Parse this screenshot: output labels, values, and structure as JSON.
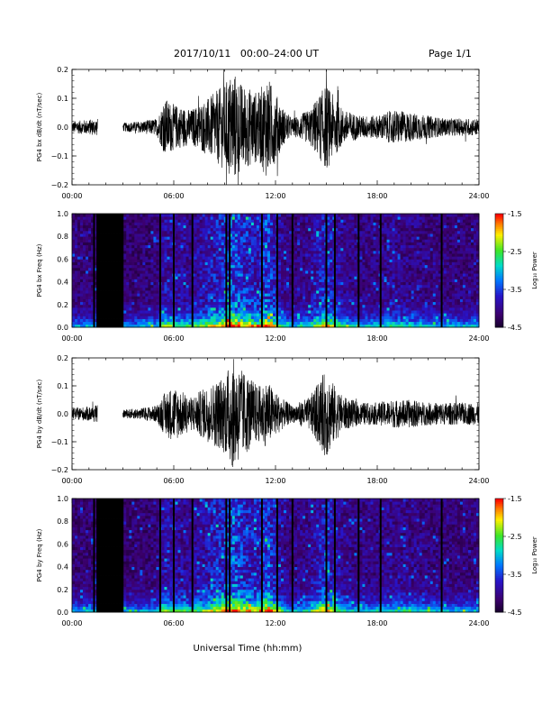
{
  "header": {
    "title": "2017/10/11   00:00–24:00 UT",
    "page": "Page 1/1"
  },
  "footer": {
    "xlabel": "Universal Time (hh:mm)"
  },
  "chart_data": [
    {
      "type": "line",
      "panel": "bx-waveform",
      "ylabel": "PG4 bx dB/dt (nT/sec)",
      "xlim": [
        "00:00",
        "24:00"
      ],
      "ylim": [
        -0.2,
        0.2
      ],
      "yticks": [
        "0.2",
        "0.1",
        "0.0",
        "−0.1",
        "−0.2"
      ],
      "xticks": [
        "00:00",
        "06:00",
        "12:00",
        "18:00",
        "24:00"
      ],
      "data_gap": [
        "01:30",
        "03:00"
      ],
      "envelope": {
        "x_hours": [
          0,
          1.5,
          3,
          4,
          5,
          5.5,
          6,
          7,
          8,
          9,
          9.5,
          10,
          11,
          11.5,
          12,
          12.5,
          13,
          14,
          15,
          15.5,
          16,
          17,
          18,
          19,
          20,
          21,
          22,
          23,
          24
        ],
        "amplitude": [
          0.02,
          0.03,
          0.015,
          0.02,
          0.03,
          0.1,
          0.08,
          0.06,
          0.1,
          0.15,
          0.2,
          0.15,
          0.12,
          0.18,
          0.12,
          0.06,
          0.03,
          0.06,
          0.15,
          0.1,
          0.06,
          0.04,
          0.04,
          0.06,
          0.05,
          0.04,
          0.03,
          0.03,
          0.03
        ]
      }
    },
    {
      "type": "heatmap",
      "panel": "bx-spectrogram",
      "ylabel": "PG4 bx Freq (Hz)",
      "xlim": [
        "00:00",
        "24:00"
      ],
      "ylim": [
        0.0,
        1.0
      ],
      "yticks": [
        "1.0",
        "0.8",
        "0.6",
        "0.4",
        "0.2",
        "0.0"
      ],
      "xticks": [
        "00:00",
        "06:00",
        "12:00",
        "18:00",
        "24:00"
      ],
      "colorbar": {
        "label": "Log₁₀ Power",
        "range": [
          -4.5,
          -1.5
        ],
        "ticks": [
          "-1.5",
          "-2.5",
          "-3.5",
          "-4.5"
        ]
      },
      "data_gap": [
        "01:30",
        "03:00"
      ]
    },
    {
      "type": "line",
      "panel": "by-waveform",
      "ylabel": "PG4 by dB/dt (nT/sec)",
      "xlim": [
        "00:00",
        "24:00"
      ],
      "ylim": [
        -0.2,
        0.2
      ],
      "yticks": [
        "0.2",
        "0.1",
        "0.0",
        "−0.1",
        "−0.2"
      ],
      "xticks": [
        "00:00",
        "06:00",
        "12:00",
        "18:00",
        "24:00"
      ],
      "data_gap": [
        "01:30",
        "03:00"
      ],
      "envelope": {
        "x_hours": [
          0,
          1.5,
          3,
          4,
          5,
          5.5,
          6,
          7,
          8,
          9,
          9.5,
          10,
          11,
          11.5,
          12,
          12.5,
          13,
          14,
          15,
          15.5,
          16,
          17,
          18,
          19,
          20,
          21,
          22,
          23,
          24
        ],
        "amplitude": [
          0.02,
          0.03,
          0.015,
          0.02,
          0.03,
          0.08,
          0.1,
          0.06,
          0.1,
          0.14,
          0.2,
          0.16,
          0.1,
          0.12,
          0.08,
          0.05,
          0.03,
          0.06,
          0.16,
          0.1,
          0.06,
          0.04,
          0.04,
          0.05,
          0.05,
          0.04,
          0.04,
          0.04,
          0.04
        ]
      }
    },
    {
      "type": "heatmap",
      "panel": "by-spectrogram",
      "ylabel": "PG4 by Freq (Hz)",
      "xlim": [
        "00:00",
        "24:00"
      ],
      "ylim": [
        0.0,
        1.0
      ],
      "yticks": [
        "1.0",
        "0.8",
        "0.6",
        "0.4",
        "0.2",
        "0.0"
      ],
      "xticks": [
        "00:00",
        "06:00",
        "12:00",
        "18:00",
        "24:00"
      ],
      "colorbar": {
        "label": "Log₁₀ Power",
        "range": [
          -4.5,
          -1.5
        ],
        "ticks": [
          "-1.5",
          "-2.5",
          "-3.5",
          "-4.5"
        ]
      },
      "data_gap": [
        "01:30",
        "03:00"
      ]
    }
  ]
}
